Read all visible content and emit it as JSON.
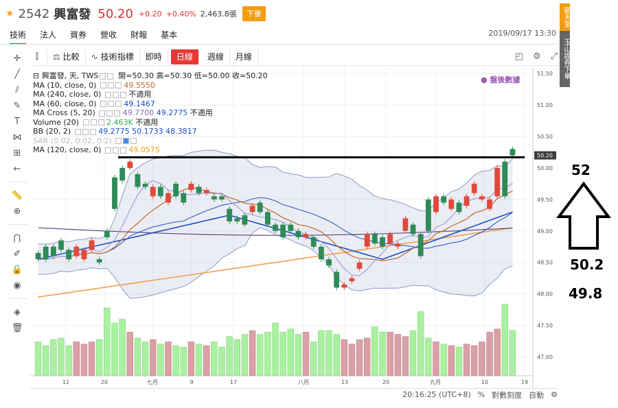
{
  "header": {
    "code": "2542",
    "name": "興富發",
    "price": "50.20",
    "change": "+0.20",
    "change_pct": "+0.40%",
    "volume": "2,463.8張",
    "badge": "下單",
    "datetime": "2019/09/17 13:30"
  },
  "tabs": [
    "技術",
    "法人",
    "資券",
    "營收",
    "財報",
    "基本"
  ],
  "toolbar": {
    "compare": "比較",
    "indicators": "技術指標",
    "realtime": "即時",
    "daily": "日線",
    "weekly": "週線",
    "monthly": "月線"
  },
  "legend": {
    "main": "興富發, 天, TWS",
    "open_label": "開=50.30",
    "high_label": "高=50.30",
    "low_label": "低=50.00",
    "close_label": "收=50.20",
    "ma10": "MA (10, close, 0)",
    "ma10_val": "49.5550",
    "ma240": "MA (240, close, 0)",
    "ma240_val": "不適用",
    "ma60": "MA (60, close, 0)",
    "ma60_val": "49.1467",
    "macross": "MA Cross (5, 20)",
    "macross_v1": "49.7700",
    "macross_v2": "49.2775",
    "macross_v3": "不適用",
    "volume": "Volume (20)",
    "volume_v1": "2.463K",
    "volume_v2": "不適用",
    "bb": "BB (20, 2)",
    "bb_v1": "49.2775",
    "bb_v2": "50.1733",
    "bb_v3": "48.3817",
    "sar": "SAR (0.02, 0.02, 0.2)",
    "ma120": "MA (120, close, 0)",
    "ma120_val": "49.0575",
    "after_hours": "盤後數據"
  },
  "price_axis": [
    "51.50",
    "51.00",
    "50.50",
    "50.00",
    "49.50",
    "49.00",
    "48.50",
    "48.00",
    "47.50",
    "47.00"
  ],
  "current_price_tag": "50.20",
  "x_axis": [
    "12",
    "20",
    "七月",
    "9",
    "17",
    "八月",
    "13",
    "20",
    "九月",
    "10",
    "19"
  ],
  "bottom": {
    "time": "20:16:25 (UTC+8)",
    "pct": "%",
    "log": "對數刻度",
    "auto": "自動"
  },
  "side": {
    "chat": "聊天室",
    "broker": "玉山證券下單"
  },
  "annotation": {
    "top": "52",
    "mid": "50.2",
    "low": "49.8"
  },
  "colors": {
    "up": "#e04a3a",
    "down": "#2e8b57",
    "accent": "#f39c12"
  },
  "chart_data": {
    "type": "candlestick",
    "candles": [
      [
        48.65,
        48.55
      ],
      [
        48.75,
        48.55
      ],
      [
        48.75,
        48.6
      ],
      [
        48.85,
        48.7
      ],
      [
        48.7,
        48.55
      ],
      [
        48.6,
        48.75
      ],
      [
        48.55,
        48.7
      ],
      [
        48.7,
        48.85
      ],
      [
        48.55,
        48.5
      ],
      [
        49.0,
        48.9
      ],
      [
        49.85,
        49.35
      ],
      [
        50.0,
        49.8
      ],
      [
        50.0,
        50.1
      ],
      [
        49.9,
        49.7
      ],
      [
        49.75,
        49.7
      ],
      [
        49.55,
        49.7
      ],
      [
        49.7,
        49.55
      ],
      [
        49.45,
        49.6
      ],
      [
        49.75,
        49.55
      ],
      [
        49.6,
        49.45
      ],
      [
        49.65,
        49.75
      ],
      [
        49.7,
        49.6
      ],
      [
        49.6,
        49.65
      ],
      [
        49.55,
        49.5
      ],
      [
        49.55,
        49.5
      ],
      [
        49.35,
        49.15
      ],
      [
        49.2,
        49.15
      ],
      [
        49.25,
        49.1
      ],
      [
        49.3,
        49.4
      ],
      [
        49.45,
        49.3
      ],
      [
        49.3,
        49.1
      ],
      [
        49.1,
        49.0
      ],
      [
        49.1,
        48.9
      ],
      [
        49.1,
        49.0
      ],
      [
        49.0,
        48.9
      ],
      [
        48.9,
        48.95
      ],
      [
        48.9,
        48.75
      ],
      [
        48.75,
        48.55
      ],
      [
        48.55,
        48.45
      ],
      [
        48.35,
        48.1
      ],
      [
        48.1,
        48.15
      ],
      [
        48.2,
        48.25
      ],
      [
        48.4,
        48.5
      ],
      [
        48.75,
        48.95
      ],
      [
        48.95,
        48.8
      ],
      [
        48.9,
        48.75
      ],
      [
        48.8,
        48.95
      ],
      [
        48.75,
        48.8
      ],
      [
        49.0,
        49.2
      ],
      [
        49.1,
        48.95
      ],
      [
        48.95,
        48.6
      ],
      [
        49.5,
        49.0
      ],
      [
        49.3,
        49.55
      ],
      [
        49.55,
        49.45
      ],
      [
        49.35,
        49.5
      ],
      [
        49.45,
        49.3
      ],
      [
        49.4,
        49.55
      ],
      [
        49.6,
        49.75
      ],
      [
        49.5,
        49.55
      ],
      [
        49.35,
        49.5
      ],
      [
        49.55,
        50.0
      ],
      [
        50.1,
        49.55
      ],
      [
        50.3,
        50.2
      ]
    ],
    "ylim": [
      46.7,
      51.6
    ]
  }
}
